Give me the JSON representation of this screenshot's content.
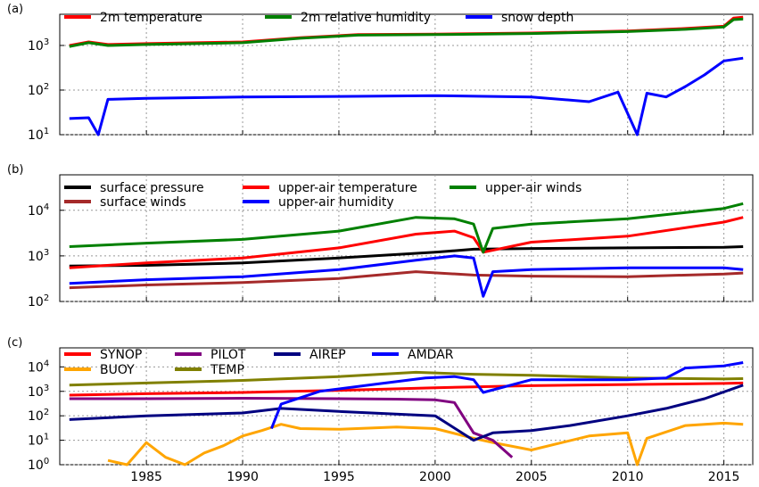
{
  "chart_data": [
    {
      "panel": "(a)",
      "type": "line",
      "yscale": "log",
      "ylim": [
        10,
        5000
      ],
      "yticks": [
        10,
        100,
        1000
      ],
      "ytick_labels": [
        "10^1",
        "10^2",
        "10^3"
      ],
      "grid": true,
      "legend_placement": "top",
      "series": [
        {
          "name": "2m temperature",
          "color": "#ff0000",
          "x": [
            1981,
            1982,
            1983,
            1985,
            1990,
            1993,
            1996,
            2000,
            2005,
            2010,
            2013,
            2015,
            2015.5,
            2016
          ],
          "y": [
            1000,
            1200,
            1050,
            1100,
            1200,
            1500,
            1750,
            1800,
            1900,
            2100,
            2400,
            2700,
            4100,
            4300
          ]
        },
        {
          "name": "2m relative humidity",
          "color": "#008000",
          "x": [
            1981,
            1982,
            1983,
            1985,
            1990,
            1993,
            1996,
            2000,
            2005,
            2010,
            2013,
            2015,
            2015.5,
            2016
          ],
          "y": [
            950,
            1150,
            1000,
            1050,
            1150,
            1450,
            1700,
            1750,
            1850,
            2050,
            2300,
            2600,
            3800,
            3900
          ]
        },
        {
          "name": "snow depth",
          "color": "#0000ff",
          "x": [
            1981,
            1982,
            1982.5,
            1983,
            1985,
            1990,
            1995,
            2000,
            2005,
            2008,
            2009.5,
            2010.5,
            2011,
            2012,
            2013,
            2014,
            2015,
            2016
          ],
          "y": [
            23,
            24,
            10,
            62,
            65,
            70,
            72,
            75,
            70,
            55,
            90,
            10,
            85,
            70,
            120,
            220,
            450,
            520
          ]
        }
      ]
    },
    {
      "panel": "(b)",
      "type": "line",
      "yscale": "log",
      "ylim": [
        100,
        60000
      ],
      "yticks": [
        100,
        1000,
        10000
      ],
      "ytick_labels": [
        "10^2",
        "10^3",
        "10^4"
      ],
      "grid": true,
      "legend_placement": "top",
      "series": [
        {
          "name": "surface pressure",
          "color": "#000000",
          "x": [
            1981,
            1985,
            1990,
            1995,
            2000,
            2002,
            2005,
            2010,
            2015,
            2016
          ],
          "y": [
            600,
            620,
            700,
            900,
            1200,
            1400,
            1450,
            1500,
            1550,
            1600
          ]
        },
        {
          "name": "surface winds",
          "color": "#a52a2a",
          "x": [
            1981,
            1985,
            1990,
            1995,
            1999,
            2002,
            2005,
            2010,
            2015,
            2016
          ],
          "y": [
            200,
            230,
            260,
            320,
            450,
            380,
            360,
            350,
            400,
            420
          ]
        },
        {
          "name": "upper-air temperature",
          "color": "#ff0000",
          "x": [
            1981,
            1985,
            1990,
            1995,
            1999,
            2001,
            2002,
            2002.5,
            2005,
            2010,
            2015,
            2016
          ],
          "y": [
            550,
            700,
            900,
            1500,
            3000,
            3500,
            2500,
            1200,
            2000,
            2700,
            5500,
            7000
          ]
        },
        {
          "name": "upper-air humidity",
          "color": "#0000ff",
          "x": [
            1981,
            1985,
            1990,
            1995,
            1999,
            2001,
            2002,
            2002.5,
            2003,
            2005,
            2010,
            2015,
            2016
          ],
          "y": [
            250,
            300,
            350,
            500,
            800,
            1000,
            900,
            130,
            450,
            500,
            550,
            550,
            500
          ]
        },
        {
          "name": "upper-air winds",
          "color": "#008000",
          "x": [
            1981,
            1985,
            1990,
            1995,
            1999,
            2001,
            2002,
            2002.5,
            2003,
            2005,
            2010,
            2015,
            2016
          ],
          "y": [
            1600,
            1900,
            2300,
            3500,
            7000,
            6500,
            5000,
            1200,
            4000,
            5000,
            6500,
            11000,
            14000
          ]
        }
      ]
    },
    {
      "panel": "(c)",
      "type": "line",
      "yscale": "log",
      "ylim": [
        1,
        60000
      ],
      "yticks": [
        1,
        10,
        100,
        1000,
        10000
      ],
      "ytick_labels": [
        "10^0",
        "10^1",
        "10^2",
        "10^3",
        "10^4"
      ],
      "xlim": [
        1980.5,
        2016.5
      ],
      "xticks": [
        1985,
        1990,
        1995,
        2000,
        2005,
        2010,
        2015
      ],
      "grid": true,
      "legend_placement": "top",
      "series": [
        {
          "name": "SYNOP",
          "color": "#ff0000",
          "x": [
            1981,
            1985,
            1990,
            1995,
            2000,
            2005,
            2010,
            2015,
            2016
          ],
          "y": [
            700,
            800,
            900,
            1100,
            1400,
            1700,
            1900,
            2100,
            2200
          ]
        },
        {
          "name": "BUOY",
          "color": "#ffa500",
          "x": [
            1983,
            1984,
            1985,
            1986,
            1987,
            1988,
            1989,
            1990,
            1991,
            1992,
            1993,
            1995,
            1998,
            2000,
            2002,
            2003,
            2005,
            2008,
            2010,
            2010.5,
            2011,
            2013,
            2015,
            2016
          ],
          "y": [
            1.5,
            1,
            8,
            2,
            1,
            3,
            6,
            15,
            25,
            45,
            30,
            28,
            35,
            30,
            12,
            8,
            4,
            15,
            20,
            1,
            12,
            40,
            50,
            45
          ]
        },
        {
          "name": "PILOT",
          "color": "#800080",
          "x": [
            1981,
            1985,
            1990,
            1995,
            1998,
            2000,
            2001,
            2002,
            2003,
            2004
          ],
          "y": [
            500,
            500,
            520,
            500,
            480,
            450,
            350,
            20,
            10,
            2
          ]
        },
        {
          "name": "TEMP",
          "color": "#808000",
          "x": [
            1981,
            1985,
            1990,
            1995,
            1999,
            2002,
            2005,
            2010,
            2015,
            2016
          ],
          "y": [
            1800,
            2200,
            2800,
            4000,
            6000,
            5000,
            4500,
            3500,
            3200,
            3300
          ]
        },
        {
          "name": "AIREP",
          "color": "#000080",
          "x": [
            1981,
            1985,
            1990,
            1992,
            1995,
            2000,
            2002,
            2003,
            2005,
            2007,
            2010,
            2012,
            2014,
            2016
          ],
          "y": [
            70,
            100,
            130,
            200,
            150,
            100,
            10,
            20,
            25,
            40,
            100,
            200,
            500,
            1800
          ]
        },
        {
          "name": "AMDAR",
          "color": "#0000ff",
          "x": [
            1991.5,
            1992,
            1994,
            1997,
            1999.5,
            2001,
            2002,
            2002.5,
            2005,
            2010,
            2012,
            2013,
            2015,
            2016
          ],
          "y": [
            30,
            300,
            1000,
            2000,
            3500,
            4000,
            3000,
            900,
            3000,
            3000,
            3500,
            9000,
            11000,
            15000
          ]
        }
      ]
    }
  ]
}
